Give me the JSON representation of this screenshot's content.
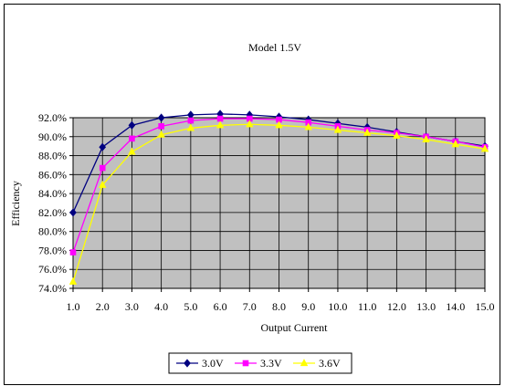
{
  "chart_data": {
    "type": "line",
    "title": "Model 1.5V",
    "xlabel": "Output Current",
    "ylabel": "Efficiency",
    "x": [
      1.0,
      2.0,
      3.0,
      4.0,
      5.0,
      6.0,
      7.0,
      8.0,
      9.0,
      10.0,
      11.0,
      12.0,
      13.0,
      14.0,
      15.0
    ],
    "x_tick_labels": [
      "1.0",
      "2.0",
      "3.0",
      "4.0",
      "5.0",
      "6.0",
      "7.0",
      "8.0",
      "9.0",
      "10.0",
      "11.0",
      "12.0",
      "13.0",
      "14.0",
      "15.0"
    ],
    "y_tick_labels": [
      "74.0%",
      "76.0%",
      "78.0%",
      "80.0%",
      "82.0%",
      "84.0%",
      "86.0%",
      "88.0%",
      "90.0%",
      "92.0%"
    ],
    "ylim": [
      74.0,
      92.0
    ],
    "xlim": [
      1.0,
      15.0
    ],
    "grid": true,
    "plot_background": "#c0c0c0",
    "legend_position": "bottom",
    "series": [
      {
        "name": "3.0V",
        "color": "#000080",
        "marker": "diamond",
        "values": [
          82.0,
          88.9,
          91.2,
          92.0,
          92.3,
          92.4,
          92.3,
          92.1,
          91.8,
          91.4,
          91.0,
          90.5,
          90.0,
          89.5,
          89.0
        ]
      },
      {
        "name": "3.3V",
        "color": "#ff00ff",
        "marker": "square",
        "values": [
          77.8,
          86.7,
          89.8,
          91.1,
          91.7,
          91.9,
          91.9,
          91.8,
          91.5,
          91.1,
          90.7,
          90.4,
          90.0,
          89.5,
          88.9
        ]
      },
      {
        "name": "3.6V",
        "color": "#ffff00",
        "marker": "triangle",
        "values": [
          74.7,
          84.9,
          88.4,
          90.2,
          90.9,
          91.2,
          91.3,
          91.2,
          91.0,
          90.7,
          90.4,
          90.1,
          89.7,
          89.2,
          88.7
        ]
      }
    ]
  }
}
